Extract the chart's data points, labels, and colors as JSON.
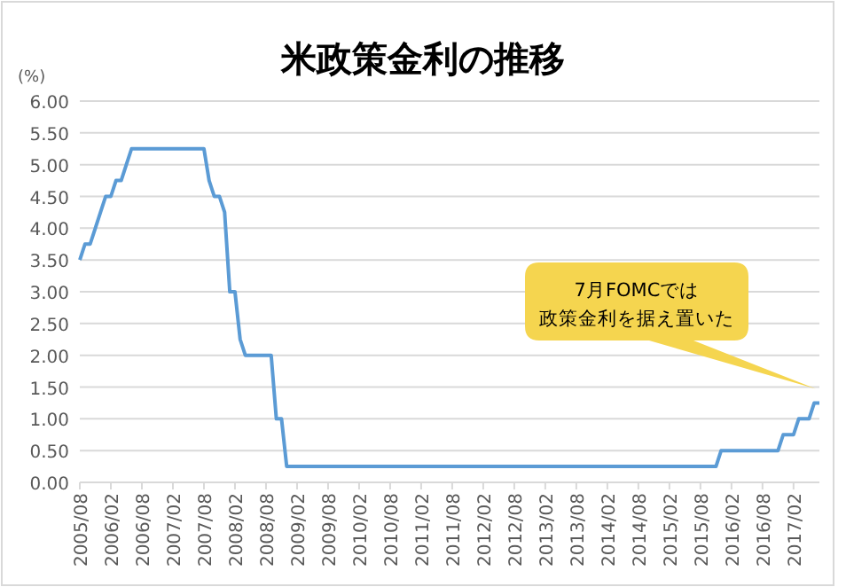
{
  "chart_data": {
    "type": "line",
    "title": "米政策金利の推移",
    "ylabel": "(%)",
    "categories": [
      "2005/08",
      null,
      null,
      null,
      null,
      null,
      "2006/02",
      null,
      null,
      null,
      null,
      null,
      "2006/08",
      null,
      null,
      null,
      null,
      null,
      "2007/02",
      null,
      null,
      null,
      null,
      null,
      "2007/08",
      null,
      null,
      null,
      null,
      null,
      "2008/02",
      null,
      null,
      null,
      null,
      null,
      "2008/08",
      null,
      null,
      null,
      null,
      null,
      "2009/02",
      null,
      null,
      null,
      null,
      null,
      "2009/08",
      null,
      null,
      null,
      null,
      null,
      "2010/02",
      null,
      null,
      null,
      null,
      null,
      "2010/08",
      null,
      null,
      null,
      null,
      null,
      "2011/02",
      null,
      null,
      null,
      null,
      null,
      "2011/08",
      null,
      null,
      null,
      null,
      null,
      "2012/02",
      null,
      null,
      null,
      null,
      null,
      "2012/08",
      null,
      null,
      null,
      null,
      null,
      "2013/02",
      null,
      null,
      null,
      null,
      null,
      "2013/08",
      null,
      null,
      null,
      null,
      null,
      "2014/02",
      null,
      null,
      null,
      null,
      null,
      "2014/08",
      null,
      null,
      null,
      null,
      null,
      "2015/02",
      null,
      null,
      null,
      null,
      null,
      "2015/08",
      null,
      null,
      null,
      null,
      null,
      "2016/02",
      null,
      null,
      null,
      null,
      null,
      "2016/08",
      null,
      null,
      null,
      null,
      null,
      "2017/02",
      null,
      null,
      null,
      null,
      null
    ],
    "series": [
      {
        "color": "#5b9bd5",
        "values": [
          3.5,
          3.75,
          3.75,
          4,
          4.25,
          4.5,
          4.5,
          4.75,
          4.75,
          5,
          5.25,
          5.25,
          5.25,
          5.25,
          5.25,
          5.25,
          5.25,
          5.25,
          5.25,
          5.25,
          5.25,
          5.25,
          5.25,
          5.25,
          5.25,
          4.75,
          4.5,
          4.5,
          4.25,
          3,
          3,
          2.25,
          2,
          2,
          2,
          2,
          2,
          2,
          1,
          1,
          0.25,
          0.25,
          0.25,
          0.25,
          0.25,
          0.25,
          0.25,
          0.25,
          0.25,
          0.25,
          0.25,
          0.25,
          0.25,
          0.25,
          0.25,
          0.25,
          0.25,
          0.25,
          0.25,
          0.25,
          0.25,
          0.25,
          0.25,
          0.25,
          0.25,
          0.25,
          0.25,
          0.25,
          0.25,
          0.25,
          0.25,
          0.25,
          0.25,
          0.25,
          0.25,
          0.25,
          0.25,
          0.25,
          0.25,
          0.25,
          0.25,
          0.25,
          0.25,
          0.25,
          0.25,
          0.25,
          0.25,
          0.25,
          0.25,
          0.25,
          0.25,
          0.25,
          0.25,
          0.25,
          0.25,
          0.25,
          0.25,
          0.25,
          0.25,
          0.25,
          0.25,
          0.25,
          0.25,
          0.25,
          0.25,
          0.25,
          0.25,
          0.25,
          0.25,
          0.25,
          0.25,
          0.25,
          0.25,
          0.25,
          0.25,
          0.25,
          0.25,
          0.25,
          0.25,
          0.25,
          0.25,
          0.25,
          0.25,
          0.25,
          0.5,
          0.5,
          0.5,
          0.5,
          0.5,
          0.5,
          0.5,
          0.5,
          0.5,
          0.5,
          0.5,
          0.5,
          0.75,
          0.75,
          0.75,
          1,
          1,
          1,
          1.25,
          1.25
        ]
      }
    ],
    "ylim": [
      0,
      6
    ],
    "yticks": [
      {
        "value": 0,
        "label": "0.00"
      },
      {
        "value": 0.5,
        "label": "0.50"
      },
      {
        "value": 1,
        "label": "1.00"
      },
      {
        "value": 1.5,
        "label": "1.50"
      },
      {
        "value": 2,
        "label": "2.00"
      },
      {
        "value": 2.5,
        "label": "2.50"
      },
      {
        "value": 3,
        "label": "3.00"
      },
      {
        "value": 3.5,
        "label": "3.50"
      },
      {
        "value": 4,
        "label": "4.00"
      },
      {
        "value": 4.5,
        "label": "4.50"
      },
      {
        "value": 5,
        "label": "5.00"
      },
      {
        "value": 5.5,
        "label": "5.50"
      },
      {
        "value": 6,
        "label": "6.00"
      }
    ],
    "grid": "y",
    "annotations": [
      "7月FOMCでは",
      "政策金利を据え置いた"
    ]
  }
}
